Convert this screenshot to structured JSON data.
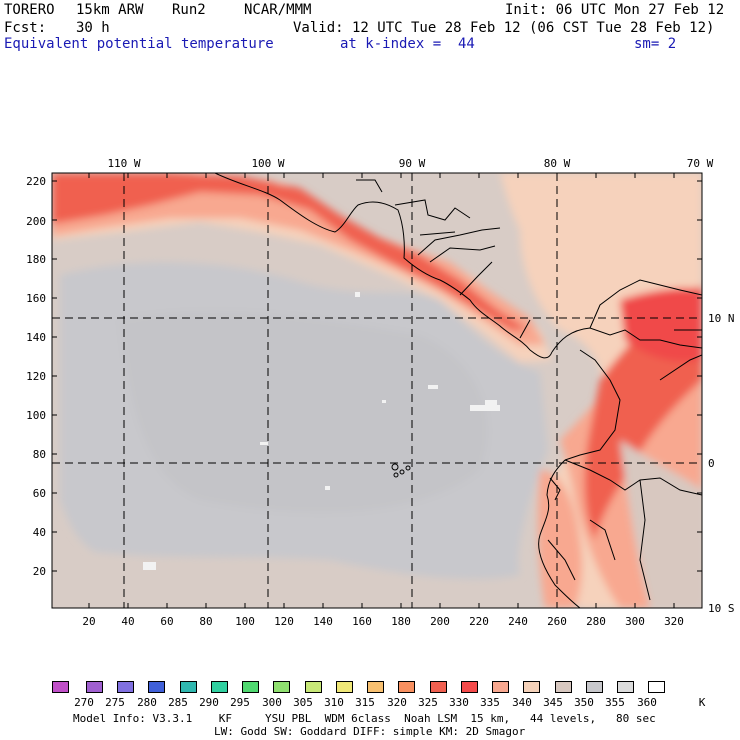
{
  "header": {
    "model": "TORERO",
    "resolution": "15km ARW",
    "run": "Run2",
    "org": "NCAR/MMM",
    "init": "Init: 06 UTC Mon 27 Feb 12",
    "fcst_label": "Fcst:",
    "fcst_hours": "30 h",
    "valid": "Valid: 12 UTC Tue 28 Feb 12 (06 CST Tue 28 Feb 12)",
    "field": "Equivalent potential temperature",
    "level": "at k-index =  44",
    "smoothing": "sm= 2"
  },
  "top_axis": [
    "110 W",
    "100 W",
    "90 W",
    "80 W",
    "70 W"
  ],
  "right_axis": [
    "10 N",
    "0",
    "10 S"
  ],
  "left_axis": [
    "220",
    "200",
    "180",
    "160",
    "140",
    "120",
    "100",
    "80",
    "60",
    "40",
    "20"
  ],
  "bottom_axis": [
    "20",
    "40",
    "60",
    "80",
    "100",
    "120",
    "140",
    "160",
    "180",
    "200",
    "220",
    "240",
    "260",
    "280",
    "300",
    "320"
  ],
  "colorbar": {
    "labels": [
      "270",
      "275",
      "280",
      "285",
      "290",
      "295",
      "300",
      "305",
      "310",
      "315",
      "320",
      "325",
      "330",
      "335",
      "340",
      "345",
      "350",
      "355",
      "360"
    ],
    "unit": "K",
    "colors": [
      "#c050c8",
      "#a060d0",
      "#8070e0",
      "#4060d8",
      "#30b8b0",
      "#30d0a0",
      "#50d870",
      "#90e070",
      "#c8e878",
      "#f0e878",
      "#f8c070",
      "#f89060",
      "#f06050",
      "#f44a4a",
      "#f8a890",
      "#f5d2ba",
      "#d8c8c0",
      "#c8c8cc",
      "#dcdcdc",
      "#ffffff"
    ]
  },
  "footer": {
    "line1": "Model Info: V3.3.1    KF     YSU PBL  WDM 6class  Noah LSM  15 km,   44 levels,   80 sec",
    "line2": "LW: Godd SW: Goddard DIFF: simple KM: 2D Smagor"
  }
}
